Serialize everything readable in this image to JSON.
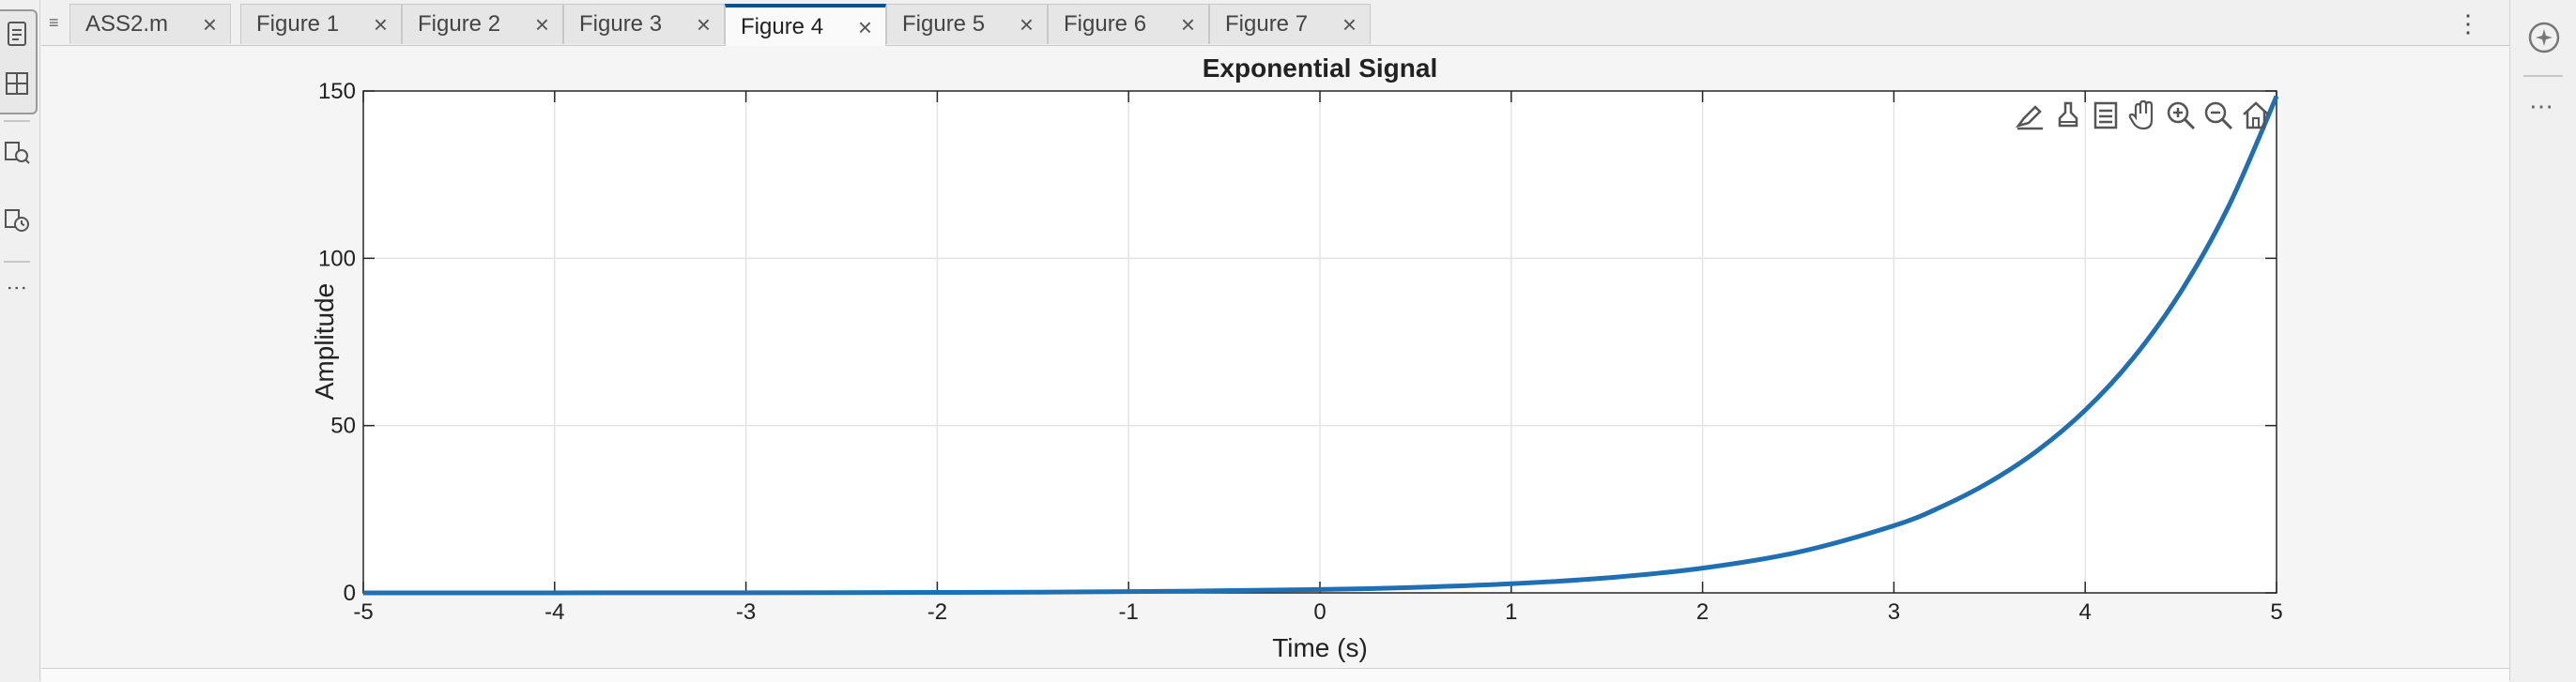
{
  "window": {
    "tabs": [
      {
        "label": "ASS2.m",
        "active": false
      },
      {
        "label": "Figure 1",
        "active": false
      },
      {
        "label": "Figure 2",
        "active": false
      },
      {
        "label": "Figure 3",
        "active": false
      },
      {
        "label": "Figure 4",
        "active": true
      },
      {
        "label": "Figure 5",
        "active": false
      },
      {
        "label": "Figure 6",
        "active": false
      },
      {
        "label": "Figure 7",
        "active": false
      }
    ],
    "tab_close_glyph": "×",
    "menu_glyph": "⋮",
    "handle_glyph": "≡",
    "left_more_glyph": "⋮",
    "right_more_glyph": "⋯"
  },
  "axes_toolbar": {
    "icons": [
      "brush-edit-icon",
      "data-tips-icon",
      "legend-icon",
      "pan-hand-icon",
      "zoom-in-icon",
      "zoom-out-icon",
      "home-restore-icon"
    ]
  },
  "colors": {
    "line": "#1f6fb2",
    "active_tab_accent": "#0e4f86",
    "grid": "#e3e3e3"
  },
  "chart_data": {
    "type": "line",
    "title": "Exponential Signal",
    "xlabel": "Time (s)",
    "ylabel": "Amplitude",
    "xlim": [
      -5,
      5
    ],
    "ylim": [
      0,
      150
    ],
    "xticks": [
      -5,
      -4,
      -3,
      -2,
      -1,
      0,
      1,
      2,
      3,
      4,
      5
    ],
    "yticks": [
      0,
      50,
      100,
      150
    ],
    "grid": true,
    "series": [
      {
        "x": [
          -5,
          -4,
          -3,
          -2,
          -1,
          0,
          0.5,
          1,
          1.5,
          2,
          2.5,
          3,
          3.25,
          3.5,
          3.75,
          4,
          4.25,
          4.5,
          4.75,
          5
        ],
        "y": [
          0.0067,
          0.018,
          0.05,
          0.135,
          0.37,
          1,
          1.65,
          2.72,
          4.48,
          7.39,
          12.18,
          20.09,
          25.79,
          33.12,
          42.52,
          54.6,
          70.11,
          90.02,
          115.58,
          148.41
        ]
      }
    ]
  }
}
